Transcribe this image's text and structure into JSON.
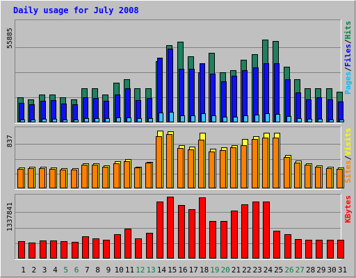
{
  "chart_data": {
    "type": "bar",
    "title": "Daily usage for July 2008",
    "categories": [
      "1",
      "2",
      "3",
      "4",
      "5",
      "6",
      "7",
      "8",
      "9",
      "10",
      "11",
      "12",
      "13",
      "14",
      "15",
      "16",
      "17",
      "18",
      "19",
      "20",
      "21",
      "22",
      "23",
      "24",
      "25",
      "26",
      "27",
      "28",
      "29",
      "30",
      "31"
    ],
    "weekend_days": [
      "5",
      "6",
      "12",
      "13",
      "19",
      "20",
      "26",
      "27"
    ],
    "panels": [
      {
        "id": "pages-files-hits",
        "max_label": "55885",
        "ymax": 55885,
        "legend": [
          "Pages",
          "/",
          "Files",
          "/",
          "Hits"
        ],
        "legend_colors": [
          "#00c0ff",
          "#000000",
          "#0000ff",
          "#000000",
          "#008040"
        ],
        "series": [
          {
            "name": "Hits",
            "color": "#208060",
            "values": [
              14000,
              13000,
              15500,
              15500,
              14000,
              13000,
              19000,
              19000,
              15500,
              22000,
              24000,
              19000,
              19000,
              34000,
              43000,
              45000,
              37000,
              28000,
              39000,
              28000,
              29000,
              35000,
              38000,
              46000,
              45500,
              31000,
              24000,
              19000,
              19000,
              19000,
              17000
            ]
          },
          {
            "name": "Files",
            "color": "#1010f0",
            "values": [
              11000,
              10000,
              12000,
              12500,
              10500,
              10000,
              14000,
              13500,
              12000,
              15500,
              19000,
              12500,
              13500,
              36000,
              41000,
              30000,
              30000,
              33000,
              27000,
              23000,
              26000,
              29000,
              30500,
              33000,
              33000,
              24000,
              16500,
              13000,
              14000,
              13000,
              11500
            ]
          },
          {
            "name": "Pages",
            "color": "#40c0ff",
            "values": [
              1700,
              1700,
              1800,
              1800,
              1700,
              1600,
              2300,
              2300,
              2200,
              2700,
              2800,
              2500,
              2500,
              5500,
              5900,
              3800,
              3900,
              5200,
              3800,
              3200,
              3200,
              3700,
              4400,
              5000,
              4700,
              3600,
              2500,
              2000,
              1800,
              1700,
              1600
            ]
          }
        ]
      },
      {
        "id": "sites-visits",
        "max_label": "837",
        "ymax": 837,
        "legend": [
          "Sites",
          "/",
          "Visits"
        ],
        "legend_colors": [
          "#ff8000",
          "#000000",
          "#ffff00"
        ],
        "series": [
          {
            "name": "Visits",
            "color": "#ffff40",
            "values": [
              295,
              305,
              310,
              300,
              285,
              285,
              355,
              355,
              325,
              380,
              410,
              310,
              375,
              820,
              810,
              610,
              590,
              790,
              565,
              580,
              615,
              700,
              740,
              790,
              790,
              470,
              390,
              350,
              325,
              310,
              300
            ]
          },
          {
            "name": "Sites",
            "color": "#ff8000",
            "values": [
              275,
              285,
              285,
              280,
              265,
              265,
              330,
              335,
              305,
              355,
              385,
              295,
              360,
              740,
              770,
              570,
              550,
              690,
              520,
              540,
              580,
              610,
              700,
              720,
              720,
              440,
              365,
              330,
              305,
              290,
              280
            ]
          }
        ]
      },
      {
        "id": "kbytes",
        "max_label": "1337841",
        "ymax": 1337841,
        "legend": [
          "KBytes"
        ],
        "legend_colors": [
          "#ff0000"
        ],
        "series": [
          {
            "name": "KBytes",
            "color": "#ff0000",
            "values": [
              370000,
              340000,
              390000,
              390000,
              370000,
              360000,
              480000,
              440000,
              400000,
              530000,
              640000,
              440000,
              550000,
              1240000,
              1337841,
              1160000,
              1070000,
              1320000,
              810000,
              810000,
              1040000,
              1170000,
              1230000,
              1230000,
              600000,
              520000,
              420000,
              410000,
              410000,
              400000,
              400000
            ]
          }
        ]
      }
    ],
    "xlabel": "",
    "grid": true
  }
}
